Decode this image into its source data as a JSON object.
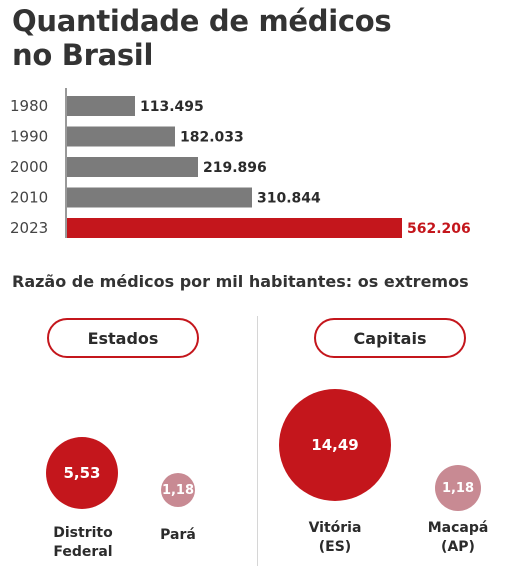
{
  "title_lines": [
    "Quantidade de médicos",
    "no Brasil"
  ],
  "colors": {
    "bar": "#7b7b7b",
    "highlight": "#c4161c",
    "bubble_low": "#c88a93",
    "text": "#2b2b2b"
  },
  "chart_data": [
    {
      "type": "bar",
      "orientation": "horizontal",
      "title": "Quantidade de médicos no Brasil",
      "categories": [
        "1980",
        "1990",
        "2000",
        "2010",
        "2023"
      ],
      "values": [
        113495,
        182033,
        219896,
        310844,
        562206
      ],
      "value_labels": [
        "113.495",
        "182.033",
        "219.896",
        "310.844",
        "562.206"
      ],
      "highlight": "2023",
      "xlim": [
        0,
        562206
      ]
    },
    {
      "type": "bubble",
      "title": "Razão de médicos por mil habitantes: os extremos",
      "groups": [
        {
          "name": "Estados",
          "items": [
            {
              "name_lines": [
                "Distrito",
                "Federal"
              ],
              "value": 5.53,
              "label": "5,53"
            },
            {
              "name_lines": [
                "Pará"
              ],
              "value": 1.18,
              "label": "1,18"
            }
          ]
        },
        {
          "name": "Capitais",
          "items": [
            {
              "name_lines": [
                "Vitória",
                "(ES)"
              ],
              "value": 14.49,
              "label": "14,49"
            },
            {
              "name_lines": [
                "Macapá",
                "(AP)"
              ],
              "value": 1.18,
              "label": "1,18"
            }
          ]
        }
      ]
    }
  ]
}
